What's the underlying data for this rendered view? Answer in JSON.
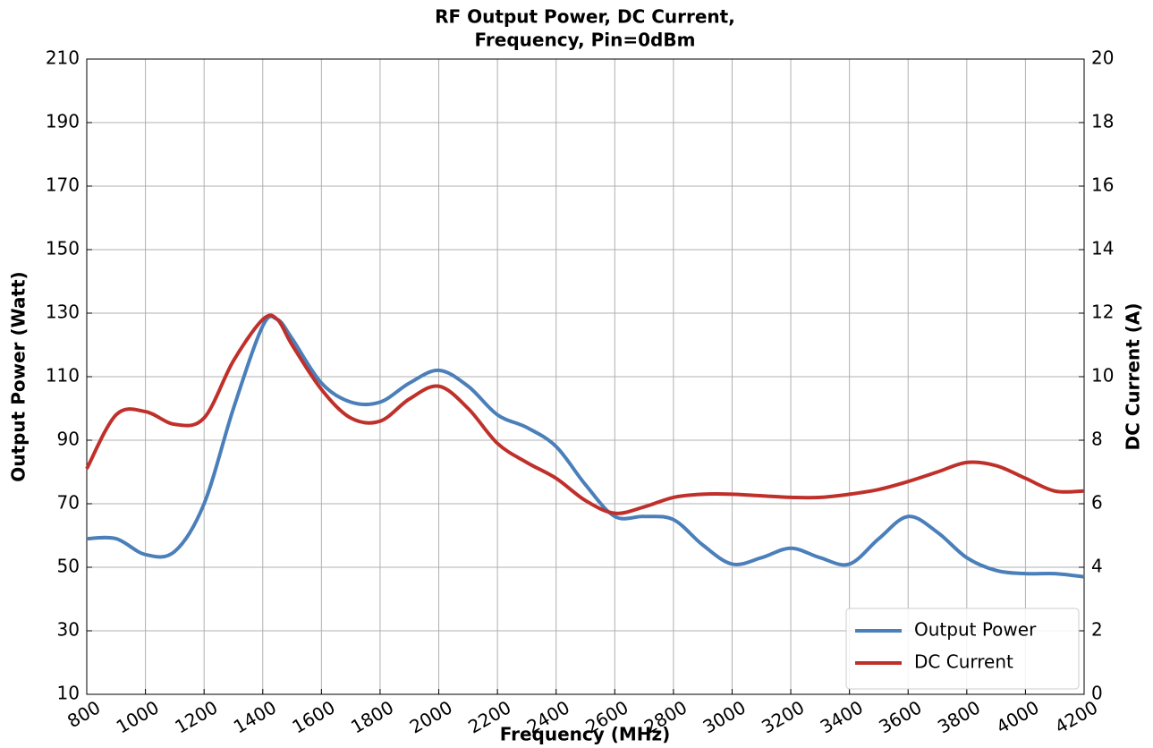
{
  "chart_data": {
    "type": "line",
    "title": [
      "RF Output Power, DC Current,",
      "Frequency, Pin=0dBm"
    ],
    "xlabel": "Frequency (MHz)",
    "ylabel": "Output Power (Watt)",
    "y2label": "DC Current (A)",
    "x": [
      800,
      900,
      1000,
      1100,
      1200,
      1300,
      1400,
      1450,
      1500,
      1600,
      1700,
      1800,
      1900,
      2000,
      2100,
      2200,
      2300,
      2400,
      2500,
      2600,
      2700,
      2800,
      2900,
      3000,
      3100,
      3200,
      3300,
      3400,
      3500,
      3600,
      3700,
      3800,
      3900,
      4000,
      4100,
      4200
    ],
    "series": [
      {
        "name": "Output Power",
        "color": "#4a7fba",
        "values": [
          59,
          59,
          54,
          55,
          70,
          100,
          126,
          128,
          122,
          108,
          102,
          102,
          108,
          112,
          107,
          98,
          94,
          88,
          76,
          66,
          66,
          65,
          57,
          51,
          53,
          56,
          53,
          51,
          59,
          66,
          61,
          53,
          49,
          48,
          48,
          47
        ]
      },
      {
        "name": "DC Current",
        "color": "#c0302b",
        "axis": "y2",
        "values": [
          7.1,
          8.8,
          8.9,
          8.5,
          8.7,
          10.5,
          11.8,
          11.8,
          11.0,
          9.6,
          8.7,
          8.6,
          9.3,
          9.7,
          9.0,
          7.9,
          7.3,
          6.8,
          6.1,
          5.7,
          5.9,
          6.2,
          6.3,
          6.3,
          6.25,
          6.2,
          6.2,
          6.3,
          6.45,
          6.7,
          7.0,
          7.3,
          7.2,
          6.8,
          6.4,
          6.4
        ]
      }
    ],
    "xlim": [
      800,
      4200
    ],
    "xticks": [
      800,
      1000,
      1200,
      1400,
      1600,
      1800,
      2000,
      2200,
      2400,
      2600,
      2800,
      3000,
      3200,
      3400,
      3600,
      3800,
      4000,
      4200
    ],
    "ylim": [
      10,
      210
    ],
    "yticks": [
      10,
      30,
      50,
      70,
      90,
      110,
      130,
      150,
      170,
      190,
      210
    ],
    "y2lim": [
      0,
      20
    ],
    "y2ticks": [
      0,
      2,
      4,
      6,
      8,
      10,
      12,
      14,
      16,
      18,
      20
    ],
    "grid": true,
    "legend": "lower right"
  }
}
